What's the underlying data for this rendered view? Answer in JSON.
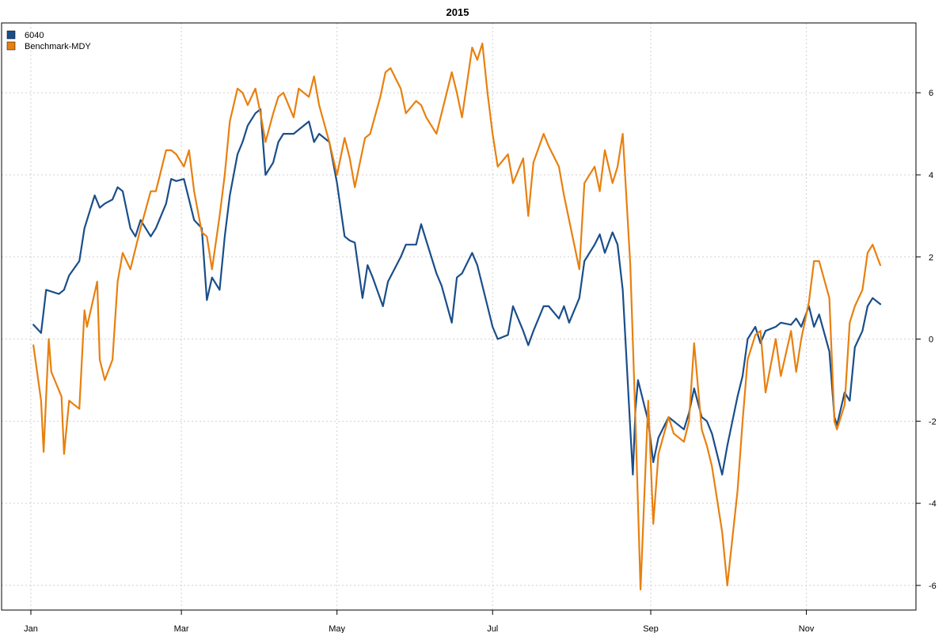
{
  "chart_data": {
    "type": "line",
    "title": "2015",
    "xlabel": "",
    "ylabel": "",
    "x_range": [
      "2015-01-01",
      "2015-12-01"
    ],
    "ylim": [
      -6.6,
      7.7
    ],
    "y_axis_side": "right",
    "y_ticks": [
      -6,
      -4,
      -2,
      0,
      2,
      4,
      6
    ],
    "x_ticks": [
      {
        "date": "2015-01-01",
        "label": "Jan"
      },
      {
        "date": "2015-03-01",
        "label": "Mar"
      },
      {
        "date": "2015-05-01",
        "label": "May"
      },
      {
        "date": "2015-07-01",
        "label": "Jul"
      },
      {
        "date": "2015-09-01",
        "label": "Sep"
      },
      {
        "date": "2015-11-01",
        "label": "Nov"
      }
    ],
    "grid": true,
    "legend_position": "top-left",
    "series": [
      {
        "name": "6040",
        "color": "#1a4e8a",
        "points": [
          [
            "2015-01-02",
            0.35
          ],
          [
            "2015-01-05",
            0.15
          ],
          [
            "2015-01-07",
            1.2
          ],
          [
            "2015-01-12",
            1.1
          ],
          [
            "2015-01-14",
            1.2
          ],
          [
            "2015-01-16",
            1.55
          ],
          [
            "2015-01-20",
            1.9
          ],
          [
            "2015-01-22",
            2.7
          ],
          [
            "2015-01-26",
            3.5
          ],
          [
            "2015-01-28",
            3.2
          ],
          [
            "2015-01-30",
            3.3
          ],
          [
            "2015-02-02",
            3.4
          ],
          [
            "2015-02-04",
            3.7
          ],
          [
            "2015-02-06",
            3.6
          ],
          [
            "2015-02-09",
            2.7
          ],
          [
            "2015-02-11",
            2.5
          ],
          [
            "2015-02-13",
            2.9
          ],
          [
            "2015-02-17",
            2.5
          ],
          [
            "2015-02-19",
            2.7
          ],
          [
            "2015-02-23",
            3.3
          ],
          [
            "2015-02-25",
            3.9
          ],
          [
            "2015-02-27",
            3.85
          ],
          [
            "2015-03-02",
            3.9
          ],
          [
            "2015-03-04",
            3.4
          ],
          [
            "2015-03-06",
            2.9
          ],
          [
            "2015-03-09",
            2.7
          ],
          [
            "2015-03-11",
            0.95
          ],
          [
            "2015-03-13",
            1.5
          ],
          [
            "2015-03-16",
            1.2
          ],
          [
            "2015-03-18",
            2.5
          ],
          [
            "2015-03-20",
            3.5
          ],
          [
            "2015-03-23",
            4.5
          ],
          [
            "2015-03-25",
            4.8
          ],
          [
            "2015-03-27",
            5.2
          ],
          [
            "2015-03-30",
            5.5
          ],
          [
            "2015-04-01",
            5.6
          ],
          [
            "2015-04-03",
            4.0
          ],
          [
            "2015-04-06",
            4.3
          ],
          [
            "2015-04-08",
            4.8
          ],
          [
            "2015-04-10",
            5.0
          ],
          [
            "2015-04-14",
            5.0
          ],
          [
            "2015-04-16",
            5.1
          ],
          [
            "2015-04-20",
            5.3
          ],
          [
            "2015-04-22",
            4.8
          ],
          [
            "2015-04-24",
            5.0
          ],
          [
            "2015-04-28",
            4.8
          ],
          [
            "2015-05-01",
            3.8
          ],
          [
            "2015-05-04",
            2.5
          ],
          [
            "2015-05-06",
            2.4
          ],
          [
            "2015-05-08",
            2.35
          ],
          [
            "2015-05-11",
            1.0
          ],
          [
            "2015-05-13",
            1.8
          ],
          [
            "2015-05-15",
            1.5
          ],
          [
            "2015-05-19",
            0.8
          ],
          [
            "2015-05-21",
            1.4
          ],
          [
            "2015-05-26",
            2.0
          ],
          [
            "2015-05-28",
            2.3
          ],
          [
            "2015-06-01",
            2.3
          ],
          [
            "2015-06-03",
            2.8
          ],
          [
            "2015-06-05",
            2.4
          ],
          [
            "2015-06-09",
            1.6
          ],
          [
            "2015-06-11",
            1.3
          ],
          [
            "2015-06-15",
            0.4
          ],
          [
            "2015-06-17",
            1.5
          ],
          [
            "2015-06-19",
            1.6
          ],
          [
            "2015-06-23",
            2.1
          ],
          [
            "2015-06-25",
            1.8
          ],
          [
            "2015-06-29",
            0.8
          ],
          [
            "2015-07-01",
            0.3
          ],
          [
            "2015-07-03",
            0.0
          ],
          [
            "2015-07-07",
            0.1
          ],
          [
            "2015-07-09",
            0.8
          ],
          [
            "2015-07-13",
            0.2
          ],
          [
            "2015-07-15",
            -0.15
          ],
          [
            "2015-07-17",
            0.2
          ],
          [
            "2015-07-21",
            0.8
          ],
          [
            "2015-07-23",
            0.8
          ],
          [
            "2015-07-27",
            0.5
          ],
          [
            "2015-07-29",
            0.8
          ],
          [
            "2015-07-31",
            0.4
          ],
          [
            "2015-08-04",
            1.0
          ],
          [
            "2015-08-06",
            1.9
          ],
          [
            "2015-08-10",
            2.3
          ],
          [
            "2015-08-12",
            2.55
          ],
          [
            "2015-08-14",
            2.1
          ],
          [
            "2015-08-17",
            2.6
          ],
          [
            "2015-08-19",
            2.3
          ],
          [
            "2015-08-21",
            1.2
          ],
          [
            "2015-08-24",
            -2.2
          ],
          [
            "2015-08-25",
            -3.3
          ],
          [
            "2015-08-26",
            -1.7
          ],
          [
            "2015-08-27",
            -1.0
          ],
          [
            "2015-08-31",
            -2.0
          ],
          [
            "2015-09-02",
            -3.0
          ],
          [
            "2015-09-04",
            -2.4
          ],
          [
            "2015-09-08",
            -1.9
          ],
          [
            "2015-09-10",
            -2.0
          ],
          [
            "2015-09-14",
            -2.2
          ],
          [
            "2015-09-16",
            -1.8
          ],
          [
            "2015-09-18",
            -1.2
          ],
          [
            "2015-09-21",
            -1.9
          ],
          [
            "2015-09-23",
            -2.0
          ],
          [
            "2015-09-25",
            -2.3
          ],
          [
            "2015-09-29",
            -3.3
          ],
          [
            "2015-10-01",
            -2.6
          ],
          [
            "2015-10-05",
            -1.4
          ],
          [
            "2015-10-07",
            -0.9
          ],
          [
            "2015-10-09",
            0.0
          ],
          [
            "2015-10-12",
            0.3
          ],
          [
            "2015-10-14",
            -0.1
          ],
          [
            "2015-10-16",
            0.2
          ],
          [
            "2015-10-20",
            0.3
          ],
          [
            "2015-10-22",
            0.4
          ],
          [
            "2015-10-26",
            0.35
          ],
          [
            "2015-10-28",
            0.5
          ],
          [
            "2015-10-30",
            0.3
          ],
          [
            "2015-11-02",
            0.8
          ],
          [
            "2015-11-04",
            0.3
          ],
          [
            "2015-11-06",
            0.6
          ],
          [
            "2015-11-10",
            -0.3
          ],
          [
            "2015-11-12",
            -1.9
          ],
          [
            "2015-11-13",
            -2.1
          ],
          [
            "2015-11-16",
            -1.3
          ],
          [
            "2015-11-18",
            -1.5
          ],
          [
            "2015-11-20",
            -0.2
          ],
          [
            "2015-11-23",
            0.2
          ],
          [
            "2015-11-25",
            0.8
          ],
          [
            "2015-11-27",
            1.0
          ],
          [
            "2015-11-30",
            0.85
          ]
        ]
      },
      {
        "name": "Benchmark-MDY",
        "color": "#e8800f",
        "points": [
          [
            "2015-01-02",
            -0.15
          ],
          [
            "2015-01-05",
            -1.5
          ],
          [
            "2015-01-06",
            -2.75
          ],
          [
            "2015-01-08",
            0.0
          ],
          [
            "2015-01-09",
            -0.8
          ],
          [
            "2015-01-13",
            -1.4
          ],
          [
            "2015-01-14",
            -2.8
          ],
          [
            "2015-01-16",
            -1.5
          ],
          [
            "2015-01-20",
            -1.7
          ],
          [
            "2015-01-22",
            0.7
          ],
          [
            "2015-01-23",
            0.3
          ],
          [
            "2015-01-27",
            1.4
          ],
          [
            "2015-01-28",
            -0.5
          ],
          [
            "2015-01-30",
            -1.0
          ],
          [
            "2015-02-02",
            -0.5
          ],
          [
            "2015-02-04",
            1.4
          ],
          [
            "2015-02-06",
            2.1
          ],
          [
            "2015-02-09",
            1.7
          ],
          [
            "2015-02-11",
            2.2
          ],
          [
            "2015-02-13",
            2.7
          ],
          [
            "2015-02-17",
            3.6
          ],
          [
            "2015-02-19",
            3.6
          ],
          [
            "2015-02-23",
            4.6
          ],
          [
            "2015-02-25",
            4.6
          ],
          [
            "2015-02-27",
            4.5
          ],
          [
            "2015-03-02",
            4.2
          ],
          [
            "2015-03-04",
            4.6
          ],
          [
            "2015-03-06",
            3.6
          ],
          [
            "2015-03-09",
            2.6
          ],
          [
            "2015-03-11",
            2.5
          ],
          [
            "2015-03-13",
            1.7
          ],
          [
            "2015-03-16",
            3.0
          ],
          [
            "2015-03-18",
            4.0
          ],
          [
            "2015-03-20",
            5.3
          ],
          [
            "2015-03-23",
            6.1
          ],
          [
            "2015-03-25",
            6.0
          ],
          [
            "2015-03-27",
            5.7
          ],
          [
            "2015-03-30",
            6.1
          ],
          [
            "2015-04-01",
            5.5
          ],
          [
            "2015-04-03",
            4.8
          ],
          [
            "2015-04-06",
            5.5
          ],
          [
            "2015-04-08",
            5.9
          ],
          [
            "2015-04-10",
            6.0
          ],
          [
            "2015-04-14",
            5.4
          ],
          [
            "2015-04-16",
            6.1
          ],
          [
            "2015-04-20",
            5.9
          ],
          [
            "2015-04-22",
            6.4
          ],
          [
            "2015-04-24",
            5.7
          ],
          [
            "2015-04-28",
            4.8
          ],
          [
            "2015-05-01",
            4.0
          ],
          [
            "2015-05-04",
            4.9
          ],
          [
            "2015-05-06",
            4.4
          ],
          [
            "2015-05-08",
            3.7
          ],
          [
            "2015-05-12",
            4.9
          ],
          [
            "2015-05-14",
            5.0
          ],
          [
            "2015-05-18",
            5.9
          ],
          [
            "2015-05-20",
            6.5
          ],
          [
            "2015-05-22",
            6.6
          ],
          [
            "2015-05-26",
            6.1
          ],
          [
            "2015-05-28",
            5.5
          ],
          [
            "2015-06-01",
            5.8
          ],
          [
            "2015-06-03",
            5.7
          ],
          [
            "2015-06-05",
            5.4
          ],
          [
            "2015-06-09",
            5.0
          ],
          [
            "2015-06-11",
            5.5
          ],
          [
            "2015-06-15",
            6.5
          ],
          [
            "2015-06-17",
            6.0
          ],
          [
            "2015-06-19",
            5.4
          ],
          [
            "2015-06-23",
            7.1
          ],
          [
            "2015-06-25",
            6.8
          ],
          [
            "2015-06-27",
            7.2
          ],
          [
            "2015-06-29",
            6.0
          ],
          [
            "2015-07-01",
            5.0
          ],
          [
            "2015-07-03",
            4.2
          ],
          [
            "2015-07-07",
            4.5
          ],
          [
            "2015-07-09",
            3.8
          ],
          [
            "2015-07-13",
            4.4
          ],
          [
            "2015-07-15",
            3.0
          ],
          [
            "2015-07-17",
            4.3
          ],
          [
            "2015-07-21",
            5.0
          ],
          [
            "2015-07-23",
            4.7
          ],
          [
            "2015-07-27",
            4.2
          ],
          [
            "2015-07-29",
            3.5
          ],
          [
            "2015-07-31",
            2.9
          ],
          [
            "2015-08-04",
            1.7
          ],
          [
            "2015-08-06",
            3.8
          ],
          [
            "2015-08-10",
            4.2
          ],
          [
            "2015-08-12",
            3.6
          ],
          [
            "2015-08-14",
            4.6
          ],
          [
            "2015-08-17",
            3.8
          ],
          [
            "2015-08-19",
            4.2
          ],
          [
            "2015-08-21",
            5.0
          ],
          [
            "2015-08-24",
            1.8
          ],
          [
            "2015-08-26",
            -2.0
          ],
          [
            "2015-08-28",
            -6.1
          ],
          [
            "2015-08-31",
            -1.5
          ],
          [
            "2015-09-02",
            -4.5
          ],
          [
            "2015-09-04",
            -2.8
          ],
          [
            "2015-09-08",
            -1.9
          ],
          [
            "2015-09-10",
            -2.3
          ],
          [
            "2015-09-14",
            -2.5
          ],
          [
            "2015-09-16",
            -2.0
          ],
          [
            "2015-09-18",
            -0.1
          ],
          [
            "2015-09-21",
            -2.2
          ],
          [
            "2015-09-23",
            -2.6
          ],
          [
            "2015-09-25",
            -3.1
          ],
          [
            "2015-09-29",
            -4.7
          ],
          [
            "2015-10-01",
            -6.0
          ],
          [
            "2015-10-05",
            -3.7
          ],
          [
            "2015-10-07",
            -2.0
          ],
          [
            "2015-10-09",
            -0.5
          ],
          [
            "2015-10-12",
            0.1
          ],
          [
            "2015-10-14",
            0.2
          ],
          [
            "2015-10-16",
            -1.3
          ],
          [
            "2015-10-20",
            0.0
          ],
          [
            "2015-10-22",
            -0.9
          ],
          [
            "2015-10-26",
            0.2
          ],
          [
            "2015-10-28",
            -0.8
          ],
          [
            "2015-10-30",
            0.0
          ],
          [
            "2015-11-02",
            0.9
          ],
          [
            "2015-11-04",
            1.9
          ],
          [
            "2015-11-06",
            1.9
          ],
          [
            "2015-11-10",
            1.0
          ],
          [
            "2015-11-12",
            -2.0
          ],
          [
            "2015-11-13",
            -2.2
          ],
          [
            "2015-11-16",
            -1.6
          ],
          [
            "2015-11-18",
            0.4
          ],
          [
            "2015-11-20",
            0.8
          ],
          [
            "2015-11-23",
            1.2
          ],
          [
            "2015-11-25",
            2.1
          ],
          [
            "2015-11-27",
            2.3
          ],
          [
            "2015-11-30",
            1.8
          ]
        ]
      }
    ]
  }
}
